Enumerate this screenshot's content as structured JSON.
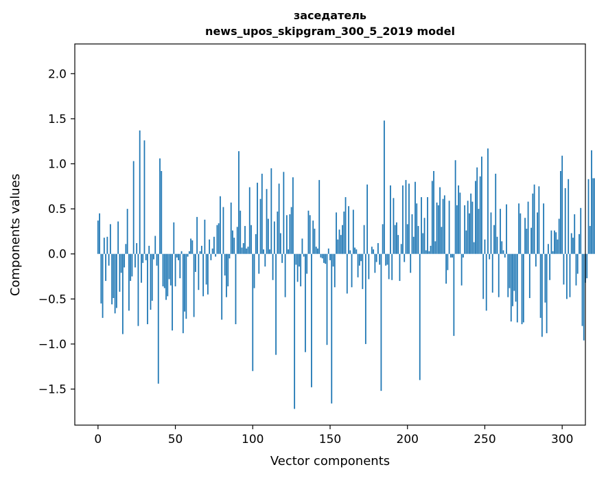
{
  "chart_data": {
    "type": "bar",
    "title_line1": "заседатель",
    "title_line2": "news_upos_skipgram_300_5_2019 model",
    "xlabel": "Vector components",
    "ylabel": "Components values",
    "xlim": [
      -15,
      315
    ],
    "ylim": [
      -1.9,
      2.33
    ],
    "xticks": [
      0,
      50,
      100,
      150,
      200,
      250,
      300
    ],
    "yticks": [
      -1.5,
      -1.0,
      -0.5,
      0.0,
      0.5,
      1.0,
      1.5,
      2.0
    ],
    "ytick_labels": [
      "−1.5",
      "−1.0",
      "−0.5",
      "0.0",
      "0.5",
      "1.0",
      "1.5",
      "2.0"
    ],
    "bar_color": "#1f77b4",
    "values": [
      0.37,
      0.45,
      -0.55,
      -0.71,
      0.18,
      -0.3,
      0.19,
      -0.13,
      0.33,
      -0.56,
      -0.49,
      -0.66,
      -0.6,
      0.36,
      -0.42,
      -0.21,
      -0.89,
      -0.15,
      0.11,
      0.5,
      -0.63,
      -0.3,
      -0.25,
      1.03,
      -0.15,
      0.12,
      -0.8,
      1.37,
      -0.32,
      -0.1,
      1.26,
      -0.07,
      -0.78,
      0.09,
      -0.62,
      -0.52,
      -0.06,
      0.2,
      -0.13,
      -1.44,
      1.06,
      0.92,
      -0.36,
      -0.38,
      -0.51,
      -0.47,
      -0.28,
      -0.35,
      -0.85,
      0.35,
      -0.36,
      -0.04,
      -0.07,
      -0.27,
      0.03,
      -0.88,
      -0.64,
      -0.72,
      -0.03,
      0.03,
      0.17,
      0.15,
      -0.7,
      -0.2,
      0.41,
      -0.4,
      0.03,
      0.09,
      -0.47,
      0.38,
      -0.34,
      -0.45,
      0.16,
      -0.07,
      0.06,
      0.19,
      -0.03,
      0.32,
      0.34,
      0.64,
      -0.73,
      0.52,
      -0.24,
      -0.48,
      -0.36,
      -0.05,
      0.57,
      0.26,
      0.18,
      -0.78,
      0.3,
      1.14,
      0.48,
      0.07,
      0.12,
      0.31,
      0.06,
      0.08,
      0.74,
      0.32,
      -1.3,
      -0.38,
      0.22,
      0.79,
      -0.22,
      0.61,
      0.89,
      0.05,
      -0.14,
      0.72,
      0.39,
      0.05,
      0.95,
      -0.29,
      0.36,
      -1.12,
      0.47,
      0.78,
      0.23,
      -0.1,
      0.91,
      -0.48,
      0.43,
      0.05,
      0.44,
      0.52,
      0.85,
      -1.72,
      -0.12,
      -0.31,
      -0.14,
      -0.36,
      0.17,
      -0.03,
      -1.09,
      -0.22,
      0.48,
      0.43,
      -1.48,
      0.37,
      0.28,
      0.08,
      0.06,
      0.82,
      -0.04,
      -0.05,
      -0.1,
      -0.11,
      -1.01,
      0.06,
      -0.07,
      -1.66,
      -0.14,
      -0.37,
      0.46,
      0.16,
      0.27,
      0.21,
      0.32,
      0.47,
      0.63,
      -0.44,
      0.53,
      0.04,
      -0.37,
      0.49,
      0.07,
      0.05,
      -0.26,
      -0.13,
      -0.08,
      -0.39,
      0.32,
      -1.0,
      0.77,
      -0.28,
      0.0,
      0.08,
      0.05,
      -0.21,
      -0.09,
      0.12,
      -0.12,
      -1.52,
      0.33,
      1.48,
      -0.13,
      -0.12,
      -0.28,
      0.76,
      -0.29,
      0.62,
      0.32,
      0.35,
      0.21,
      -0.3,
      0.11,
      0.76,
      -0.09,
      0.82,
      0.33,
      0.78,
      -0.21,
      0.44,
      0.19,
      0.8,
      0.56,
      0.31,
      -1.4,
      0.63,
      0.23,
      0.4,
      0.04,
      0.63,
      0.03,
      0.09,
      0.81,
      0.92,
      0.14,
      0.57,
      0.54,
      0.74,
      0.3,
      0.61,
      0.65,
      -0.33,
      -0.18,
      0.59,
      -0.04,
      -0.04,
      -0.91,
      1.04,
      0.54,
      0.76,
      0.68,
      -0.35,
      -0.04,
      0.54,
      0.26,
      0.59,
      0.45,
      0.67,
      0.58,
      0.13,
      0.81,
      0.96,
      0.5,
      0.86,
      1.08,
      -0.5,
      0.16,
      -0.63,
      1.17,
      -0.06,
      0.46,
      -0.43,
      0.32,
      0.89,
      0.19,
      -0.48,
      0.5,
      0.14,
      0.04,
      -0.04,
      0.55,
      -0.48,
      -0.38,
      -0.75,
      -0.58,
      -0.41,
      -0.53,
      -0.76,
      0.56,
      0.45,
      -0.78,
      -0.76,
      0.4,
      0.28,
      0.58,
      -0.49,
      0.29,
      0.67,
      0.77,
      -0.14,
      0.46,
      0.75,
      -0.71,
      -0.92,
      0.56,
      -0.54,
      -0.88,
      0.11,
      -0.29,
      0.26,
      0.03,
      0.26,
      0.24,
      0.16,
      0.39,
      0.92,
      1.09,
      -0.34,
      0.73,
      -0.5,
      0.83,
      -0.48,
      0.23,
      0.18,
      0.44,
      -0.35,
      -0.22,
      0.22,
      0.51,
      -0.8,
      -0.96,
      -0.32,
      -0.27,
      0.83,
      0.31,
      1.15,
      0.84,
      0.84
    ]
  }
}
